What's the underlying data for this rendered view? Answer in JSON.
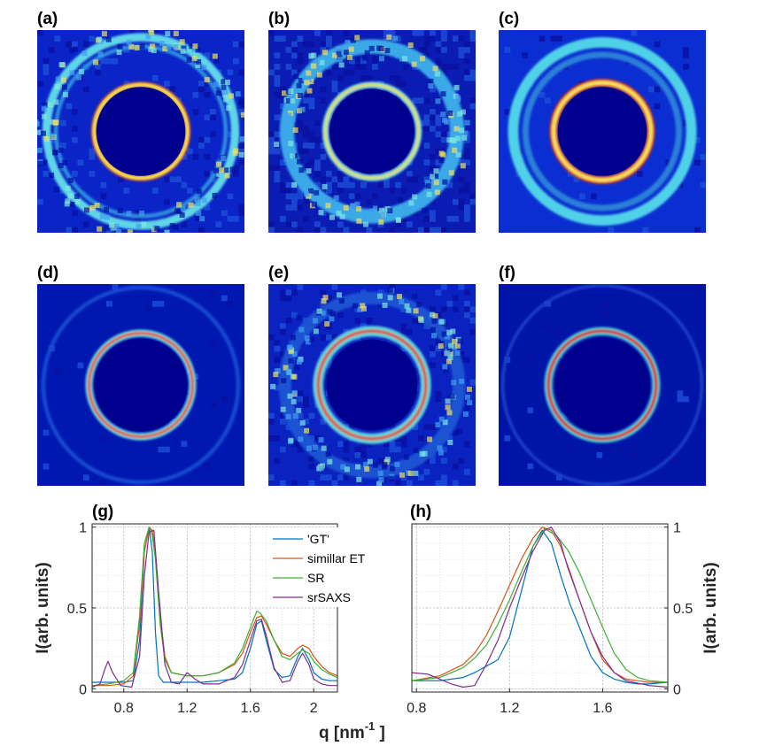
{
  "images": [
    {
      "label": "(a)",
      "bg": "#0a24c8",
      "rings": [
        {
          "r": 0.455,
          "w": 0.04,
          "c": "#5fd5e8"
        },
        {
          "r": 0.41,
          "w": 0.02,
          "c": "#2f8ee0"
        },
        {
          "r": 0.225,
          "w": 0.03,
          "c": "#e84a1c"
        },
        {
          "r": 0.225,
          "w": 0.015,
          "c": "#f2e85a"
        }
      ],
      "inner": "#00008f",
      "innerR": 0.215,
      "noise": 0.25
    },
    {
      "label": "(b)",
      "bg": "#0a1cb4",
      "rings": [
        {
          "r": 0.41,
          "w": 0.07,
          "c": "#3aa8e8"
        },
        {
          "r": 0.225,
          "w": 0.03,
          "c": "#7ee8d8"
        },
        {
          "r": 0.225,
          "w": 0.012,
          "c": "#e8d85a"
        }
      ],
      "inner": "#00008f",
      "innerR": 0.205,
      "noise": 0.6
    },
    {
      "label": "(c)",
      "bg": "#0b2ed2",
      "rings": [
        {
          "r": 0.43,
          "w": 0.05,
          "c": "#50d2e8"
        },
        {
          "r": 0.37,
          "w": 0.03,
          "c": "#2c80d8"
        },
        {
          "r": 0.235,
          "w": 0.04,
          "c": "#d8281c"
        },
        {
          "r": 0.235,
          "w": 0.02,
          "c": "#f5e060"
        },
        {
          "r": 0.15,
          "w": 0.01,
          "c": "#3a70d0"
        }
      ],
      "inner": "#00008f",
      "innerR": 0.215,
      "noise": 0.1
    },
    {
      "label": "(d)",
      "bg": "#0018b0",
      "rings": [
        {
          "r": 0.47,
          "w": 0.02,
          "c": "#1848d0"
        },
        {
          "r": 0.25,
          "w": 0.035,
          "c": "#60e0e0"
        },
        {
          "r": 0.25,
          "w": 0.014,
          "c": "#e83a1a"
        }
      ],
      "inner": "#00008f",
      "innerR": 0.225,
      "noise": 0.05
    },
    {
      "label": "(e)",
      "bg": "#0a22c0",
      "rings": [
        {
          "r": 0.42,
          "w": 0.06,
          "c": "#1c52d2"
        },
        {
          "r": 0.26,
          "w": 0.05,
          "c": "#5ad8e0"
        },
        {
          "r": 0.26,
          "w": 0.016,
          "c": "#e24818"
        }
      ],
      "inner": "#00008f",
      "innerR": 0.22,
      "noise": 0.35
    },
    {
      "label": "(f)",
      "bg": "#0014a8",
      "rings": [
        {
          "r": 0.48,
          "w": 0.015,
          "c": "#1c40c8"
        },
        {
          "r": 0.26,
          "w": 0.04,
          "c": "#40d0d8"
        },
        {
          "r": 0.26,
          "w": 0.016,
          "c": "#d82014"
        },
        {
          "r": 0.16,
          "w": 0.01,
          "c": "#2858c8"
        }
      ],
      "inner": "#00008f",
      "innerR": 0.23,
      "noise": 0.05
    }
  ],
  "chart_data": [
    {
      "type": "line",
      "label": "(g)",
      "xlim": [
        0.6,
        2.15
      ],
      "ylim": [
        -0.02,
        1.02
      ],
      "xticks": [
        0.8,
        1.2,
        1.6,
        2
      ],
      "xtick_labels": [
        "0.8",
        "1.2",
        "1.6",
        "2"
      ],
      "yticks": [
        0,
        0.5,
        1
      ],
      "ytick_labels": [
        "0",
        "0.5",
        "1"
      ],
      "ylabel": "I(arb. units)",
      "grid": "dotted",
      "legend_position": "top-right",
      "legend": [
        "'GT'",
        "simillar ET",
        "SR",
        "srSAXS"
      ],
      "series": [
        {
          "name": "'GT'",
          "color": "#0072bd",
          "x": [
            0.6,
            0.7,
            0.8,
            0.86,
            0.9,
            0.93,
            0.96,
            0.98,
            1.0,
            1.02,
            1.05,
            1.1,
            1.2,
            1.3,
            1.4,
            1.5,
            1.55,
            1.6,
            1.64,
            1.67,
            1.7,
            1.75,
            1.8,
            1.85,
            1.9,
            1.93,
            1.97,
            2.0,
            2.05,
            2.1,
            2.15
          ],
          "y": [
            0.04,
            0.04,
            0.04,
            0.05,
            0.3,
            0.85,
            1.0,
            0.85,
            0.35,
            0.08,
            0.04,
            0.04,
            0.04,
            0.04,
            0.05,
            0.06,
            0.1,
            0.25,
            0.4,
            0.42,
            0.3,
            0.12,
            0.07,
            0.08,
            0.2,
            0.25,
            0.18,
            0.1,
            0.06,
            0.05,
            0.05
          ]
        },
        {
          "name": "simillar ET",
          "color": "#d95319",
          "x": [
            0.6,
            0.7,
            0.8,
            0.86,
            0.9,
            0.93,
            0.96,
            0.98,
            1.0,
            1.03,
            1.06,
            1.1,
            1.2,
            1.3,
            1.4,
            1.5,
            1.55,
            1.6,
            1.64,
            1.67,
            1.7,
            1.75,
            1.8,
            1.85,
            1.9,
            1.93,
            1.97,
            2.0,
            2.05,
            2.1,
            2.15
          ],
          "y": [
            0.02,
            0.02,
            0.03,
            0.08,
            0.4,
            0.85,
            1.0,
            0.98,
            0.85,
            0.45,
            0.2,
            0.1,
            0.08,
            0.08,
            0.1,
            0.15,
            0.22,
            0.35,
            0.44,
            0.45,
            0.4,
            0.3,
            0.22,
            0.2,
            0.25,
            0.27,
            0.25,
            0.2,
            0.14,
            0.1,
            0.08
          ]
        },
        {
          "name": "SR",
          "color": "#3cb034",
          "x": [
            0.6,
            0.7,
            0.8,
            0.86,
            0.9,
            0.93,
            0.96,
            0.98,
            1.0,
            1.03,
            1.06,
            1.1,
            1.2,
            1.3,
            1.4,
            1.5,
            1.55,
            1.6,
            1.64,
            1.66,
            1.7,
            1.75,
            1.8,
            1.85,
            1.9,
            1.93,
            1.97,
            2.0,
            2.05,
            2.1,
            2.15
          ],
          "y": [
            0.02,
            0.03,
            0.05,
            0.1,
            0.45,
            0.9,
            1.0,
            0.95,
            0.8,
            0.4,
            0.18,
            0.1,
            0.08,
            0.08,
            0.1,
            0.16,
            0.25,
            0.38,
            0.48,
            0.47,
            0.42,
            0.3,
            0.2,
            0.18,
            0.22,
            0.24,
            0.22,
            0.17,
            0.12,
            0.09,
            0.07
          ]
        },
        {
          "name": "srSAXS",
          "color": "#7e2f8e",
          "x": [
            0.6,
            0.65,
            0.68,
            0.7,
            0.73,
            0.78,
            0.85,
            0.9,
            0.93,
            0.96,
            0.99,
            1.02,
            1.06,
            1.1,
            1.15,
            1.2,
            1.25,
            1.3,
            1.4,
            1.5,
            1.55,
            1.6,
            1.64,
            1.67,
            1.7,
            1.75,
            1.8,
            1.85,
            1.9,
            1.93,
            1.97,
            2.0,
            2.05,
            2.1,
            2.15
          ],
          "y": [
            0.01,
            0.03,
            0.12,
            0.17,
            0.1,
            0.02,
            0.01,
            0.2,
            0.7,
            0.97,
            0.98,
            0.6,
            0.15,
            0.04,
            0.03,
            0.1,
            0.06,
            0.03,
            0.03,
            0.07,
            0.15,
            0.3,
            0.42,
            0.43,
            0.33,
            0.13,
            0.04,
            0.05,
            0.17,
            0.22,
            0.15,
            0.06,
            0.03,
            0.02,
            0.02
          ]
        }
      ]
    },
    {
      "type": "line",
      "label": "(h)",
      "xlim": [
        0.78,
        1.88
      ],
      "ylim": [
        -0.02,
        1.02
      ],
      "xticks": [
        0.8,
        1.2,
        1.6
      ],
      "xtick_labels": [
        "0.8",
        "1.2",
        "1.6"
      ],
      "yticks": [
        0,
        0.5,
        1
      ],
      "ytick_labels": [
        "0",
        "0.5",
        "1"
      ],
      "ylabel": "I(arb. units)",
      "xlabel": "q [nm",
      "xlabel_sup": "-1",
      "xlabel_end": " ]",
      "grid": "dotted",
      "series": [
        {
          "name": "'GT'",
          "color": "#0072bd",
          "x": [
            0.78,
            0.9,
            1.0,
            1.05,
            1.1,
            1.15,
            1.2,
            1.25,
            1.3,
            1.34,
            1.38,
            1.42,
            1.46,
            1.5,
            1.55,
            1.6,
            1.65,
            1.7,
            1.75,
            1.8,
            1.88
          ],
          "y": [
            0.05,
            0.05,
            0.07,
            0.1,
            0.14,
            0.18,
            0.32,
            0.6,
            0.88,
            0.98,
            0.9,
            0.7,
            0.52,
            0.38,
            0.2,
            0.1,
            0.06,
            0.04,
            0.03,
            0.03,
            0.04
          ]
        },
        {
          "name": "simillar ET",
          "color": "#d95319",
          "x": [
            0.78,
            0.9,
            1.0,
            1.05,
            1.1,
            1.15,
            1.2,
            1.25,
            1.3,
            1.34,
            1.38,
            1.42,
            1.46,
            1.5,
            1.55,
            1.6,
            1.65,
            1.7,
            1.75,
            1.8,
            1.88
          ],
          "y": [
            0.05,
            0.08,
            0.15,
            0.22,
            0.33,
            0.48,
            0.64,
            0.8,
            0.93,
            1.0,
            0.98,
            0.88,
            0.72,
            0.55,
            0.35,
            0.18,
            0.1,
            0.06,
            0.05,
            0.04,
            0.04
          ]
        },
        {
          "name": "SR",
          "color": "#3cb034",
          "x": [
            0.78,
            0.9,
            1.0,
            1.05,
            1.1,
            1.15,
            1.2,
            1.25,
            1.3,
            1.35,
            1.4,
            1.45,
            1.5,
            1.55,
            1.6,
            1.65,
            1.7,
            1.75,
            1.8,
            1.88
          ],
          "y": [
            0.05,
            0.07,
            0.13,
            0.19,
            0.27,
            0.4,
            0.55,
            0.72,
            0.88,
            0.99,
            0.95,
            0.86,
            0.72,
            0.55,
            0.38,
            0.22,
            0.12,
            0.07,
            0.05,
            0.04
          ]
        },
        {
          "name": "srSAXS",
          "color": "#7e2f8e",
          "x": [
            0.78,
            0.85,
            0.9,
            0.95,
            1.0,
            1.05,
            1.1,
            1.15,
            1.2,
            1.25,
            1.3,
            1.35,
            1.38,
            1.42,
            1.45,
            1.5,
            1.55,
            1.6,
            1.65,
            1.7,
            1.8,
            1.88
          ],
          "y": [
            0.1,
            0.09,
            0.06,
            0.03,
            0.01,
            0.02,
            0.15,
            0.3,
            0.5,
            0.68,
            0.85,
            0.98,
            1.0,
            0.9,
            0.75,
            0.55,
            0.35,
            0.2,
            0.1,
            0.05,
            0.02,
            0.01
          ]
        }
      ]
    }
  ]
}
